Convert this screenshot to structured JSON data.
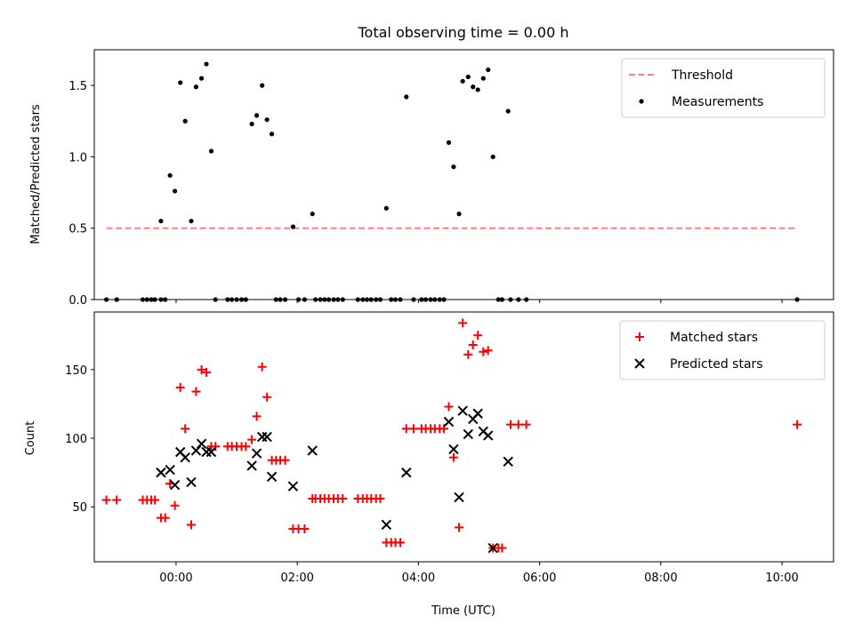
{
  "title": "Total observing time = 0.00 h",
  "chart_data": [
    {
      "type": "scatter",
      "ylabel": "Matched/Predicted stars",
      "xlim": [
        -1.35,
        10.85
      ],
      "ylim": [
        0,
        1.75
      ],
      "yticks": [
        0.0,
        0.5,
        1.0,
        1.5
      ],
      "ytick_labels": [
        "0.0",
        "0.5",
        "1.0",
        "1.5"
      ],
      "legend_position": "top-right",
      "series": [
        {
          "name": "Threshold",
          "kind": "line",
          "style": "dashed",
          "color": "#ff7f7f",
          "points": [
            [
              -1.15,
              0.5
            ],
            [
              10.25,
              0.5
            ]
          ]
        },
        {
          "name": "Measurements",
          "kind": "scatter",
          "marker": "dot",
          "color": "#000000",
          "points": [
            [
              -1.15,
              0
            ],
            [
              -0.98,
              0
            ],
            [
              -0.55,
              0
            ],
            [
              -0.48,
              0
            ],
            [
              -0.41,
              0
            ],
            [
              -0.35,
              0
            ],
            [
              -0.25,
              0
            ],
            [
              -0.18,
              0
            ],
            [
              -0.25,
              0.55
            ],
            [
              -0.1,
              0.87
            ],
            [
              -0.02,
              0.76
            ],
            [
              0.07,
              1.52
            ],
            [
              0.15,
              1.25
            ],
            [
              0.25,
              0.55
            ],
            [
              0.33,
              1.49
            ],
            [
              0.42,
              1.55
            ],
            [
              0.5,
              1.65
            ],
            [
              0.58,
              1.04
            ],
            [
              0.65,
              0
            ],
            [
              0.85,
              0
            ],
            [
              0.92,
              0
            ],
            [
              1.0,
              0
            ],
            [
              1.08,
              0
            ],
            [
              1.15,
              0
            ],
            [
              1.25,
              1.23
            ],
            [
              1.33,
              1.29
            ],
            [
              1.42,
              1.5
            ],
            [
              1.5,
              1.26
            ],
            [
              1.58,
              1.16
            ],
            [
              1.65,
              0
            ],
            [
              1.72,
              0
            ],
            [
              1.8,
              0
            ],
            [
              1.93,
              0.51
            ],
            [
              2.02,
              0
            ],
            [
              2.12,
              0
            ],
            [
              2.25,
              0.6
            ],
            [
              2.3,
              0
            ],
            [
              2.38,
              0
            ],
            [
              2.45,
              0
            ],
            [
              2.52,
              0
            ],
            [
              2.6,
              0
            ],
            [
              2.67,
              0
            ],
            [
              2.75,
              0
            ],
            [
              3.0,
              0
            ],
            [
              3.08,
              0
            ],
            [
              3.15,
              0
            ],
            [
              3.22,
              0
            ],
            [
              3.3,
              0
            ],
            [
              3.37,
              0
            ],
            [
              3.47,
              0.64
            ],
            [
              3.55,
              0
            ],
            [
              3.62,
              0
            ],
            [
              3.7,
              0
            ],
            [
              3.8,
              1.42
            ],
            [
              3.92,
              0
            ],
            [
              4.05,
              0
            ],
            [
              4.12,
              0
            ],
            [
              4.2,
              0
            ],
            [
              4.27,
              0
            ],
            [
              4.35,
              0
            ],
            [
              4.42,
              0
            ],
            [
              4.5,
              1.1
            ],
            [
              4.58,
              0.93
            ],
            [
              4.67,
              0.6
            ],
            [
              4.73,
              1.53
            ],
            [
              4.82,
              1.56
            ],
            [
              4.9,
              1.49
            ],
            [
              4.98,
              1.47
            ],
            [
              5.07,
              1.55
            ],
            [
              5.15,
              1.61
            ],
            [
              5.23,
              1.0
            ],
            [
              5.32,
              0
            ],
            [
              5.38,
              0
            ],
            [
              5.52,
              0
            ],
            [
              5.65,
              0
            ],
            [
              5.78,
              0
            ],
            [
              5.48,
              1.32
            ],
            [
              10.25,
              0
            ]
          ]
        }
      ]
    },
    {
      "type": "scatter",
      "xlabel": "Time (UTC)",
      "ylabel": "Count",
      "xlim": [
        -1.35,
        10.85
      ],
      "ylim": [
        10,
        192
      ],
      "xticks": [
        0,
        2,
        4,
        6,
        8,
        10
      ],
      "xtick_labels": [
        "00:00",
        "02:00",
        "04:00",
        "06:00",
        "08:00",
        "10:00"
      ],
      "yticks": [
        50,
        100,
        150
      ],
      "ytick_labels": [
        "50",
        "100",
        "150"
      ],
      "legend_position": "top-right",
      "series": [
        {
          "name": "Matched stars",
          "kind": "scatter",
          "marker": "plus",
          "color": "#ff0000",
          "points": [
            [
              -1.15,
              55
            ],
            [
              -0.98,
              55
            ],
            [
              -0.55,
              55
            ],
            [
              -0.48,
              55
            ],
            [
              -0.41,
              55
            ],
            [
              -0.35,
              55
            ],
            [
              -0.25,
              42
            ],
            [
              -0.18,
              42
            ],
            [
              -0.1,
              67
            ],
            [
              -0.02,
              51
            ],
            [
              0.07,
              137
            ],
            [
              0.15,
              107
            ],
            [
              0.25,
              37
            ],
            [
              0.33,
              134
            ],
            [
              0.42,
              150
            ],
            [
              0.5,
              148
            ],
            [
              0.58,
              94
            ],
            [
              0.65,
              94
            ],
            [
              0.85,
              94
            ],
            [
              0.92,
              94
            ],
            [
              1.0,
              94
            ],
            [
              1.08,
              94
            ],
            [
              1.15,
              94
            ],
            [
              1.25,
              99
            ],
            [
              1.33,
              116
            ],
            [
              1.42,
              152
            ],
            [
              1.5,
              130
            ],
            [
              1.58,
              84
            ],
            [
              1.65,
              84
            ],
            [
              1.72,
              84
            ],
            [
              1.8,
              84
            ],
            [
              1.93,
              34
            ],
            [
              2.02,
              34
            ],
            [
              2.12,
              34
            ],
            [
              2.25,
              56
            ],
            [
              2.3,
              56
            ],
            [
              2.38,
              56
            ],
            [
              2.45,
              56
            ],
            [
              2.52,
              56
            ],
            [
              2.6,
              56
            ],
            [
              2.67,
              56
            ],
            [
              2.75,
              56
            ],
            [
              3.0,
              56
            ],
            [
              3.08,
              56
            ],
            [
              3.15,
              56
            ],
            [
              3.22,
              56
            ],
            [
              3.3,
              56
            ],
            [
              3.37,
              56
            ],
            [
              3.47,
              24
            ],
            [
              3.55,
              24
            ],
            [
              3.62,
              24
            ],
            [
              3.7,
              24
            ],
            [
              3.8,
              107
            ],
            [
              3.92,
              107
            ],
            [
              4.05,
              107
            ],
            [
              4.12,
              107
            ],
            [
              4.2,
              107
            ],
            [
              4.27,
              107
            ],
            [
              4.35,
              107
            ],
            [
              4.42,
              107
            ],
            [
              4.5,
              123
            ],
            [
              4.58,
              86
            ],
            [
              4.67,
              35
            ],
            [
              4.73,
              184
            ],
            [
              4.82,
              161
            ],
            [
              4.9,
              168
            ],
            [
              4.98,
              175
            ],
            [
              5.07,
              163
            ],
            [
              5.15,
              164
            ],
            [
              5.23,
              20
            ],
            [
              5.32,
              20
            ],
            [
              5.38,
              20
            ],
            [
              5.52,
              110
            ],
            [
              5.65,
              110
            ],
            [
              5.78,
              110
            ],
            [
              10.25,
              110
            ]
          ]
        },
        {
          "name": "Predicted stars",
          "kind": "scatter",
          "marker": "x",
          "color": "#000000",
          "points": [
            [
              -0.25,
              75
            ],
            [
              -0.1,
              77
            ],
            [
              -0.02,
              66
            ],
            [
              0.07,
              90
            ],
            [
              0.15,
              86
            ],
            [
              0.25,
              68
            ],
            [
              0.33,
              91
            ],
            [
              0.42,
              96
            ],
            [
              0.5,
              90
            ],
            [
              0.58,
              90
            ],
            [
              1.25,
              80
            ],
            [
              1.33,
              89
            ],
            [
              1.42,
              101
            ],
            [
              1.5,
              101
            ],
            [
              1.58,
              72
            ],
            [
              1.93,
              65
            ],
            [
              2.25,
              91
            ],
            [
              3.47,
              37
            ],
            [
              3.8,
              75
            ],
            [
              4.5,
              112
            ],
            [
              4.58,
              92
            ],
            [
              4.67,
              57
            ],
            [
              4.73,
              120
            ],
            [
              4.82,
              103
            ],
            [
              4.9,
              114
            ],
            [
              4.98,
              118
            ],
            [
              5.07,
              105
            ],
            [
              5.15,
              102
            ],
            [
              5.23,
              20
            ],
            [
              5.48,
              83
            ]
          ]
        }
      ]
    }
  ]
}
